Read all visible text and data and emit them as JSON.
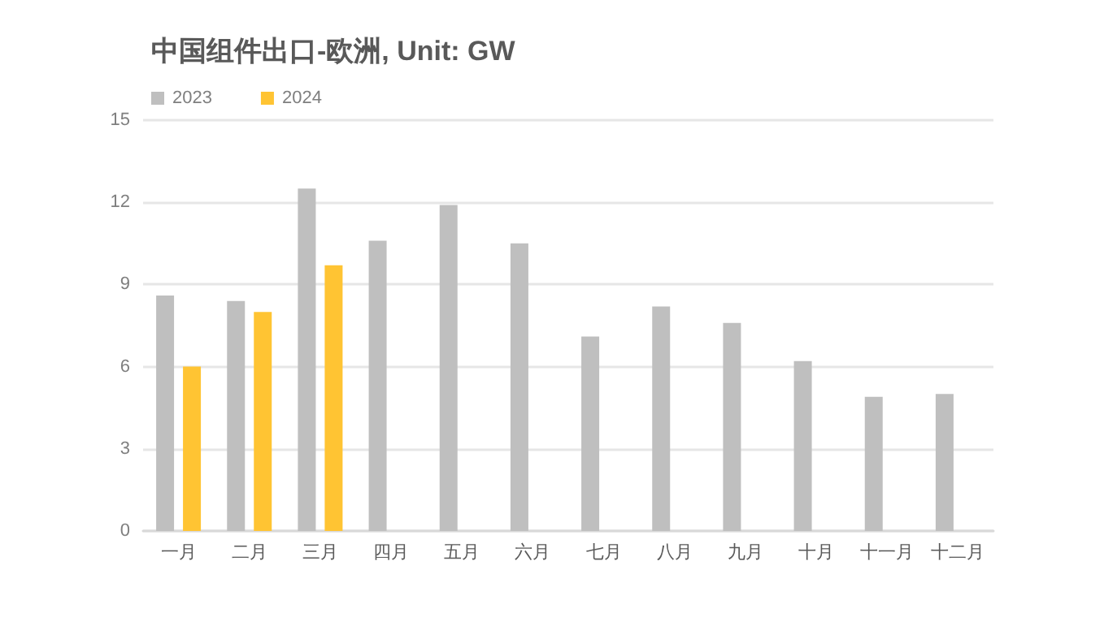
{
  "chart_data": {
    "type": "bar",
    "title": "中国组件出口-欧洲, Unit: GW",
    "categories": [
      "一月",
      "二月",
      "三月",
      "四月",
      "五月",
      "六月",
      "七月",
      "八月",
      "九月",
      "十月",
      "十一月",
      "十二月"
    ],
    "series": [
      {
        "name": "2023",
        "color": "#bfbfbf",
        "values": [
          8.6,
          8.4,
          12.5,
          10.6,
          11.9,
          10.5,
          7.1,
          8.2,
          7.6,
          6.2,
          4.9,
          5.0
        ]
      },
      {
        "name": "2024",
        "color": "#ffc433",
        "values": [
          6.0,
          8.0,
          9.7,
          null,
          null,
          null,
          null,
          null,
          null,
          null,
          null,
          null
        ]
      }
    ],
    "ylim": [
      0,
      15
    ],
    "yticks": [
      0,
      3,
      6,
      9,
      12,
      15
    ],
    "grid": "y",
    "legend": "top left"
  }
}
